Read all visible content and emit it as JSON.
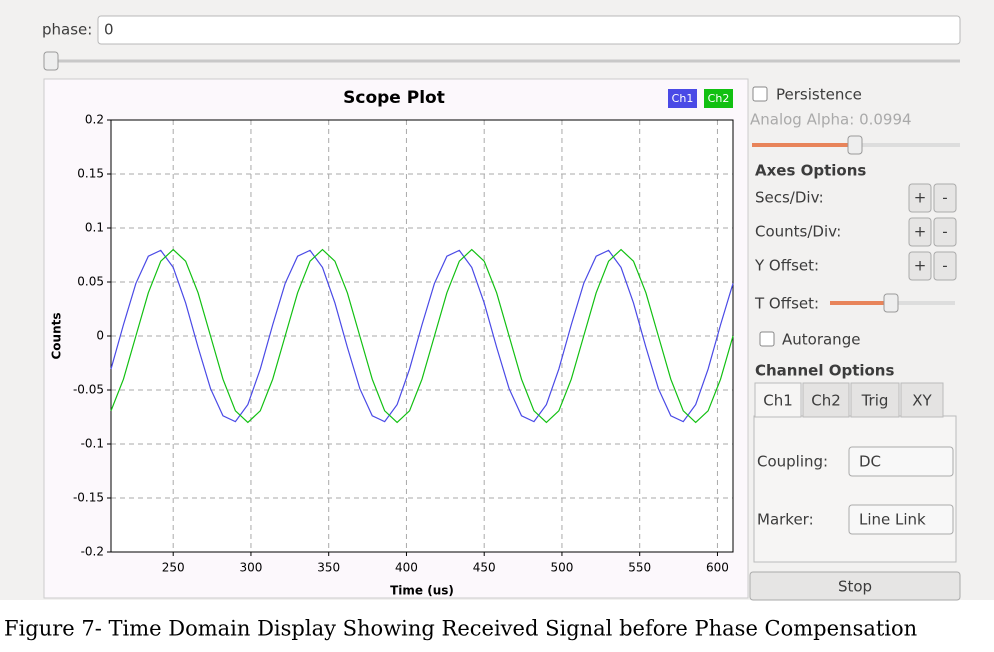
{
  "chart_data": {
    "type": "line",
    "title": "Scope Plot",
    "x_label": "Time (us)",
    "y_label": "Counts",
    "x": [
      210,
      218,
      226,
      234,
      242,
      250,
      258,
      266,
      274,
      282,
      290,
      298,
      306,
      314,
      322,
      330,
      338,
      346,
      354,
      362,
      370,
      378,
      386,
      394,
      402,
      410,
      418,
      426,
      434,
      442,
      450,
      458,
      466,
      474,
      482,
      490,
      498,
      506,
      514,
      522,
      530,
      538,
      546,
      554,
      562,
      570,
      578,
      586,
      594,
      602,
      610
    ],
    "series": [
      {
        "name": "Ch1",
        "color": "#4a4ae6",
        "values": [
          -0.0306,
          0.0104,
          0.0487,
          0.0739,
          0.0793,
          0.0635,
          0.0306,
          -0.0104,
          -0.0487,
          -0.0739,
          -0.0793,
          -0.0635,
          -0.0306,
          0.0104,
          0.0487,
          0.0739,
          0.0793,
          0.0635,
          0.0306,
          -0.0104,
          -0.0487,
          -0.0739,
          -0.0793,
          -0.0635,
          -0.0306,
          0.0104,
          0.0487,
          0.0739,
          0.0793,
          0.0635,
          0.0306,
          -0.0104,
          -0.0487,
          -0.0739,
          -0.0793,
          -0.0635,
          -0.0306,
          0.0104,
          0.0487,
          0.0739,
          0.0793,
          0.0635,
          0.0306,
          -0.0104,
          -0.0487,
          -0.0739,
          -0.0793,
          -0.0635,
          -0.0306,
          0.0104,
          0.0487
        ]
      },
      {
        "name": "Ch2",
        "color": "#12c012",
        "values": [
          -0.0693,
          -0.04,
          0,
          0.04,
          0.0693,
          0.08,
          0.0693,
          0.04,
          0,
          -0.04,
          -0.0693,
          -0.08,
          -0.0693,
          -0.04,
          0,
          0.04,
          0.0693,
          0.08,
          0.0693,
          0.04,
          0,
          -0.04,
          -0.0693,
          -0.08,
          -0.0693,
          -0.04,
          0,
          0.04,
          0.0693,
          0.08,
          0.0693,
          0.04,
          0,
          -0.04,
          -0.0693,
          -0.08,
          -0.0693,
          -0.04,
          0,
          0.04,
          0.0693,
          0.08,
          0.0693,
          0.04,
          0,
          -0.04,
          -0.0693,
          -0.08,
          -0.0693,
          -0.04,
          0
        ]
      }
    ],
    "xlim": [
      210,
      610
    ],
    "xticks": [
      250,
      300,
      350,
      400,
      450,
      500,
      550,
      600
    ],
    "ylim": [
      -0.2,
      0.2
    ],
    "yticks": [
      0.2,
      0.15,
      0.1,
      0.05,
      0,
      -0.05,
      -0.1,
      -0.15,
      -0.2
    ],
    "grid": true,
    "legend": "upper right"
  },
  "ui": {
    "phase_label": "phase:",
    "phase_value": "0",
    "persistence": "Persistence",
    "analog_alpha": "Analog Alpha: 0.0994",
    "axes_options": "Axes Options",
    "secs_div": "Secs/Div:",
    "counts_div": "Counts/Div:",
    "y_offset": "Y Offset:",
    "t_offset": "T Offset:",
    "plus": "+",
    "minus": "-",
    "autorange": "Autorange",
    "channel_options": "Channel Options",
    "tabs": [
      "Ch1",
      "Ch2",
      "Trig",
      "XY"
    ],
    "coupling_label": "Coupling:",
    "coupling_value": "DC",
    "marker_label": "Marker:",
    "marker_value": "Line Link",
    "stop": "Stop"
  },
  "caption": "Figure 7- Time Domain Display Showing Received Signal before Phase Compensation"
}
